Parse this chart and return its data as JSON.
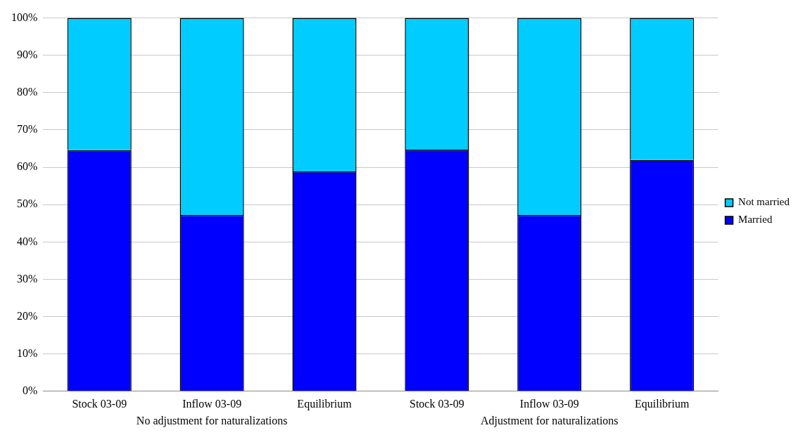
{
  "chart_data": {
    "type": "bar",
    "stacked": true,
    "categories": [
      "Stock 03-09",
      "Inflow 03-09",
      "Equilibrium",
      "Stock 03-09",
      "Inflow 03-09",
      "Equilibrium"
    ],
    "series": [
      {
        "name": "Married",
        "color": "#0000ff",
        "values": [
          64.6,
          47.2,
          58.9,
          64.7,
          47.2,
          62.0
        ]
      },
      {
        "name": "Not married",
        "color": "#00ccff",
        "values": [
          35.4,
          52.8,
          41.1,
          35.3,
          52.8,
          38.0
        ]
      }
    ],
    "ylim": [
      0,
      100
    ],
    "yticks": [
      {
        "value": 0,
        "label": "0%"
      },
      {
        "value": 10,
        "label": "10%"
      },
      {
        "value": 20,
        "label": "20%"
      },
      {
        "value": 30,
        "label": "30%"
      },
      {
        "value": 40,
        "label": "40%"
      },
      {
        "value": 50,
        "label": "50%"
      },
      {
        "value": 60,
        "label": "60%"
      },
      {
        "value": 70,
        "label": "70%"
      },
      {
        "value": 80,
        "label": "80%"
      },
      {
        "value": 90,
        "label": "90%"
      },
      {
        "value": 100,
        "label": "100%"
      }
    ],
    "grid": "y",
    "legend": "right",
    "annotations": [
      "No adjustment for naturalizations",
      "Adjustment for naturalizations"
    ]
  }
}
